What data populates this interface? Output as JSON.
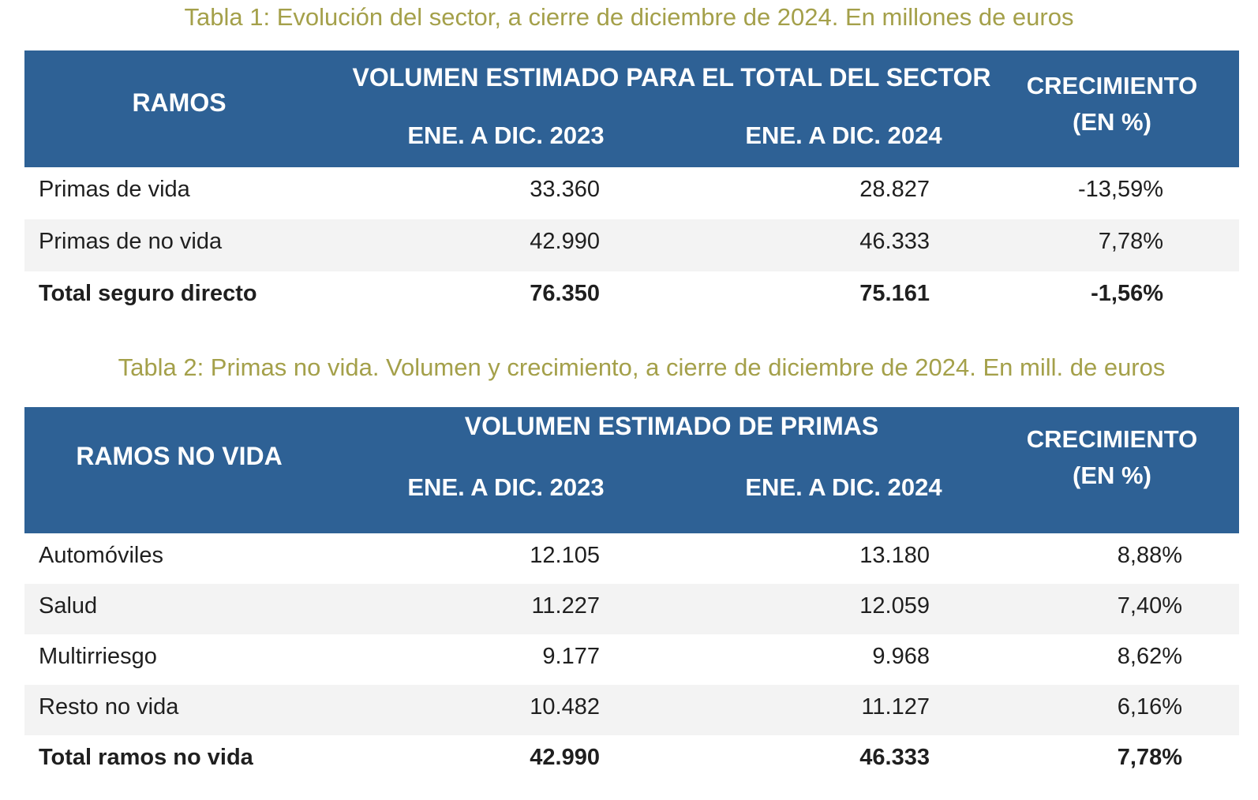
{
  "table1": {
    "caption": "Tabla 1: Evolución del sector, a cierre de diciembre de 2024. En millones de euros",
    "header": {
      "ramos": "RAMOS",
      "volumen": "VOLUMEN ESTIMADO PARA EL TOTAL DEL SECTOR",
      "year1": "ENE. A DIC. 2023",
      "year2": "ENE. A DIC. 2024",
      "crecimiento_line1": "CRECIMIENTO",
      "crecimiento_line2": "(EN %)"
    },
    "rows": [
      {
        "name": "Primas de vida",
        "v2023": "33.360",
        "v2024": "28.827",
        "growth": "-13,59%"
      },
      {
        "name": "Primas de no vida",
        "v2023": "42.990",
        "v2024": "46.333",
        "growth": "7,78%"
      },
      {
        "name": "Total seguro directo",
        "v2023": "76.350",
        "v2024": "75.161",
        "growth": "-1,56%"
      }
    ]
  },
  "table2": {
    "caption": "Tabla 2: Primas no vida. Volumen y crecimiento, a cierre de diciembre de 2024. En mill. de euros",
    "header": {
      "ramos": "RAMOS NO VIDA",
      "volumen": "VOLUMEN ESTIMADO DE PRIMAS",
      "year1": "ENE. A DIC. 2023",
      "year2": "ENE. A DIC. 2024",
      "crecimiento_line1": "CRECIMIENTO",
      "crecimiento_line2": "(EN %)"
    },
    "rows": [
      {
        "name": "Automóviles",
        "v2023": "12.105",
        "v2024": "13.180",
        "growth": "8,88%"
      },
      {
        "name": "Salud",
        "v2023": "11.227",
        "v2024": "12.059",
        "growth": "7,40%"
      },
      {
        "name": "Multirriesgo",
        "v2023": "9.177",
        "v2024": "9.968",
        "growth": "8,62%"
      },
      {
        "name": "Resto no vida",
        "v2023": "10.482",
        "v2024": "11.127",
        "growth": "6,16%"
      },
      {
        "name": "Total ramos no vida",
        "v2023": "42.990",
        "v2024": "46.333",
        "growth": "7,78%"
      }
    ]
  },
  "colors": {
    "header_bg": "#2e6195",
    "caption": "#a4a04a",
    "alt_row": "#f3f3f3"
  }
}
